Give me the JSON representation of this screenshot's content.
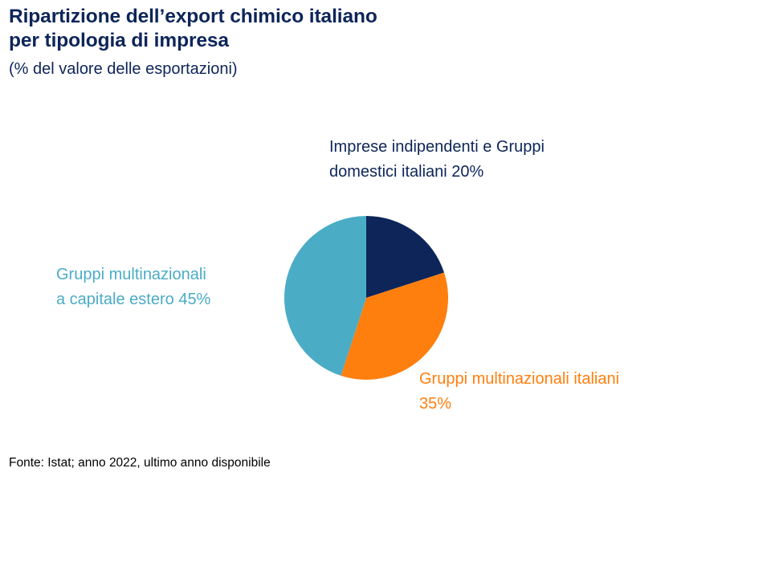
{
  "chart_data": {
    "type": "pie",
    "title_lines": [
      "Ripartizione dell’export chimico italiano",
      "per tipologia di impresa"
    ],
    "subtitle": "(% del valore delle esportazioni)",
    "unit": "%",
    "slices": [
      {
        "label_lines": [
          "Imprese indipendenti e Gruppi",
          "domestici italiani 20%"
        ],
        "value": 20,
        "color": "#0d2559"
      },
      {
        "label_lines": [
          "Gruppi multinazionali italiani",
          "35%"
        ],
        "value": 35,
        "color": "#ff7f0e"
      },
      {
        "label_lines": [
          "Gruppi multinazionali",
          "a capitale estero 45%"
        ],
        "value": 45,
        "color": "#4bacc6"
      }
    ],
    "start": "12 o'clock",
    "direction": "clockwise",
    "legend": "none (labels beside slices)"
  },
  "source": "Fonte: Istat; anno 2022, ultimo anno disponibile"
}
